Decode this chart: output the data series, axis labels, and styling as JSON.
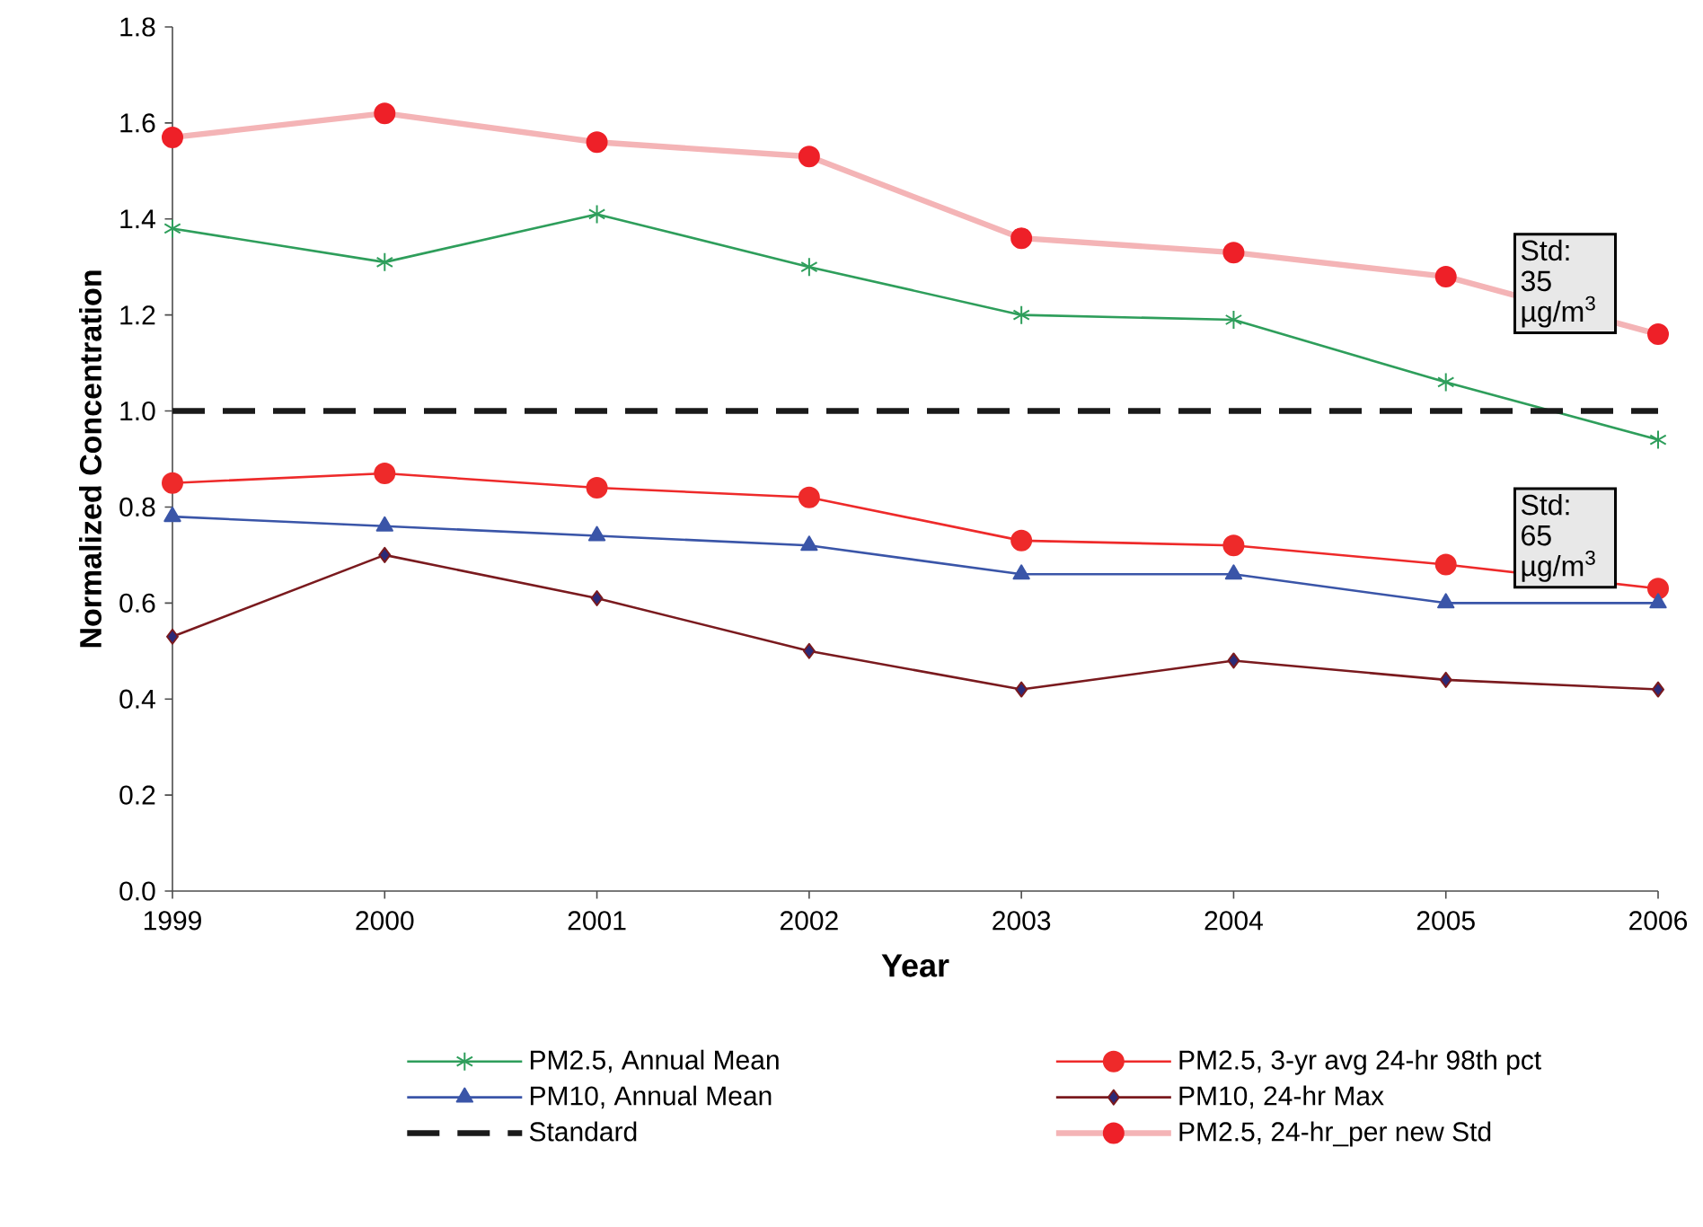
{
  "chart_data": {
    "type": "line",
    "xlabel": "Year",
    "ylabel": "Normalized Concentration",
    "x": [
      1999,
      2000,
      2001,
      2002,
      2003,
      2004,
      2005,
      2006
    ],
    "xlim": [
      1999,
      2006
    ],
    "xticks": [
      1999,
      2000,
      2001,
      2002,
      2003,
      2004,
      2005,
      2006
    ],
    "ylim": [
      0,
      1.8
    ],
    "yticks": [
      {
        "value": 0,
        "label": "0.0"
      },
      {
        "value": 0.2,
        "label": "0.2"
      },
      {
        "value": 0.4,
        "label": "0.4"
      },
      {
        "value": 0.6,
        "label": "0.6"
      },
      {
        "value": 0.8,
        "label": "0.8"
      },
      {
        "value": 1,
        "label": "1.0"
      },
      {
        "value": 1.2,
        "label": "1.2"
      },
      {
        "value": 1.4,
        "label": "1.4"
      },
      {
        "value": 1.6,
        "label": "1.6"
      },
      {
        "value": 1.8,
        "label": "1.8"
      }
    ],
    "grid": false,
    "legend": "bottom",
    "series": [
      {
        "name": "PM2.5, Annual Mean",
        "color": "#2e9e5b",
        "marker": "cross",
        "values": [
          1.38,
          1.31,
          1.41,
          1.3,
          1.2,
          1.19,
          1.06,
          0.94
        ]
      },
      {
        "name": "PM2.5, 3-yr avg 24-hr 98th pct",
        "color": "#ee2a2a",
        "marker": "circle",
        "values": [
          0.85,
          0.87,
          0.84,
          0.82,
          0.73,
          0.72,
          0.68,
          0.63
        ]
      },
      {
        "name": "PM10, Annual Mean",
        "color": "#3a55a8",
        "marker": "triangle",
        "values": [
          0.78,
          0.76,
          0.74,
          0.72,
          0.66,
          0.66,
          0.6,
          0.6
        ]
      },
      {
        "name": "PM10, 24-hr Max",
        "color": "#7a1a1e",
        "marker": "diamond",
        "colors": [
          "#2b2a78",
          "#2b2a78",
          "#2b2a78",
          "#2b2a78",
          "#2b2a78",
          "#2b2a78",
          "#2b2a78",
          "#2b2a78"
        ],
        "values": [
          0.53,
          0.7,
          0.61,
          0.5,
          0.42,
          0.48,
          0.44,
          0.42
        ]
      },
      {
        "name": "Standard",
        "color": "#1a1a1a",
        "marker": "none",
        "line_style": "dashed",
        "values": [
          1,
          1,
          1,
          1,
          1,
          1,
          1,
          1
        ]
      },
      {
        "name": "PM2.5, 24-hr_per new Std",
        "color": "#f4b4b6",
        "marker": "circle",
        "colors": [
          "#ee2028",
          "#ee2028",
          "#ee2028",
          "#ee2028",
          "#ee2028",
          "#ee2028",
          "#ee2028",
          "#ee2028"
        ],
        "values": [
          1.57,
          1.62,
          1.56,
          1.53,
          1.36,
          1.33,
          1.28,
          1.16
        ]
      }
    ],
    "annotations": [
      {
        "text": "Std: 35 µg/m$^{3}$",
        "x": 2006,
        "y": 1.16
      },
      {
        "text": "Std: 65 µg/m$^{3}$",
        "x": 2006,
        "y": 0.63
      }
    ]
  }
}
